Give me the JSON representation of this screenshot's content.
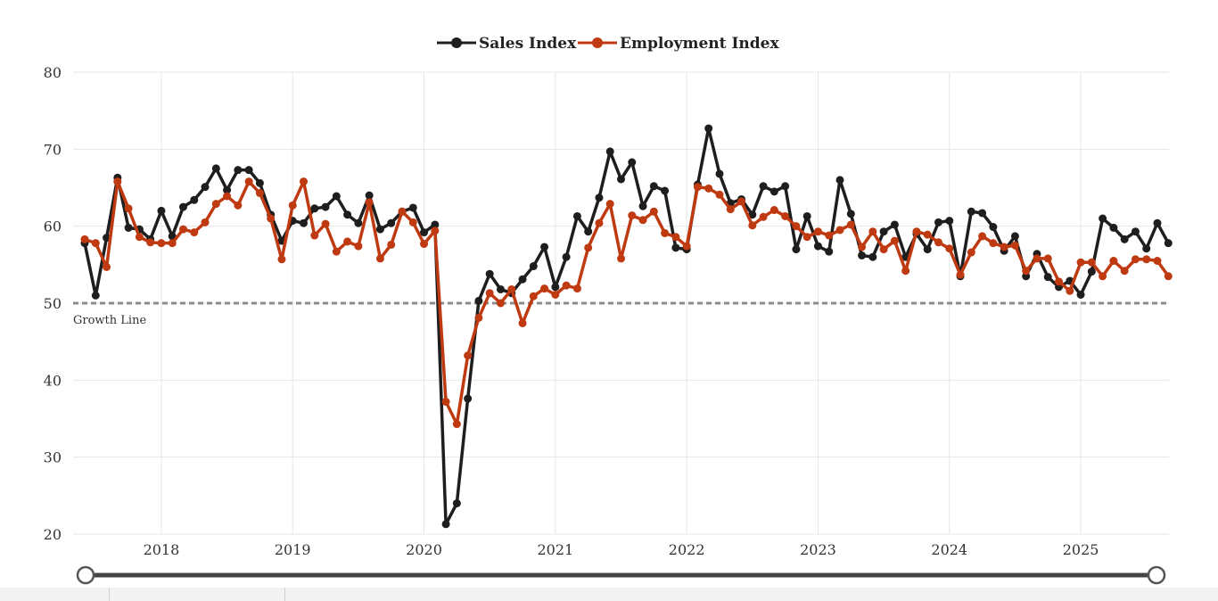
{
  "chart_data": {
    "type": "line",
    "title": "",
    "xlabel": "",
    "ylabel": "",
    "ylim": [
      20,
      80
    ],
    "y_ticks": [
      "20",
      "30",
      "40",
      "50",
      "60",
      "70",
      "80"
    ],
    "x_ticks": [
      "2018",
      "2019",
      "2020",
      "2021",
      "2022",
      "2023",
      "2024",
      "2025"
    ],
    "x_start": "2017-06",
    "x_end": "2025-08",
    "grid": true,
    "legend_position": "top-center",
    "annotations": [
      {
        "label": "Growth Line",
        "y": 50
      }
    ],
    "series": [
      {
        "name": "Sales Index",
        "color": "#1e1e1e",
        "values": [
          57.8,
          51.0,
          58.5,
          66.3,
          59.8,
          59.6,
          58.3,
          62.0,
          58.7,
          62.5,
          63.4,
          65.1,
          67.5,
          64.7,
          67.3,
          67.3,
          65.6,
          61.5,
          58.1,
          60.7,
          60.4,
          62.3,
          62.5,
          63.9,
          61.5,
          60.4,
          64.0,
          59.6,
          60.4,
          61.9,
          62.4,
          59.2,
          60.2,
          21.3,
          24.0,
          37.6,
          50.3,
          53.8,
          51.8,
          51.3,
          53.1,
          54.8,
          57.3,
          52.1,
          56.0,
          61.3,
          59.3,
          63.7,
          69.7,
          66.1,
          68.3,
          62.6,
          65.2,
          64.6,
          57.2,
          57.0,
          65.4,
          72.7,
          66.8,
          63.0,
          63.5,
          61.5,
          65.2,
          64.5,
          65.2,
          57.0,
          61.3,
          57.4,
          56.7,
          66.0,
          61.6,
          56.2,
          56.0,
          59.3,
          60.2,
          56.0,
          59.0,
          57.0,
          60.5,
          60.7,
          53.5,
          61.9,
          61.7,
          59.9,
          56.8,
          58.7,
          53.5,
          56.4,
          53.4,
          52.1,
          52.9,
          51.1,
          54.1,
          61.0,
          59.8,
          58.3,
          59.3,
          57.1,
          60.4,
          57.8
        ]
      },
      {
        "name": "Employment Index",
        "color": "#bf3a11",
        "values": [
          58.3,
          57.8,
          54.7,
          65.8,
          62.3,
          58.6,
          57.9,
          57.8,
          57.8,
          59.6,
          59.2,
          60.5,
          62.9,
          63.9,
          62.7,
          65.8,
          64.3,
          61.0,
          55.7,
          62.7,
          65.8,
          58.8,
          60.3,
          56.7,
          58.0,
          57.4,
          63.1,
          55.8,
          57.6,
          61.9,
          60.5,
          57.7,
          59.4,
          37.2,
          34.3,
          43.2,
          48.1,
          51.3,
          50.0,
          51.8,
          47.4,
          50.9,
          51.9,
          51.1,
          52.3,
          51.9,
          57.2,
          60.4,
          62.9,
          55.8,
          61.4,
          60.8,
          61.9,
          59.1,
          58.6,
          57.4,
          65.1,
          64.9,
          64.1,
          62.2,
          63.2,
          60.1,
          61.2,
          62.1,
          61.3,
          60.0,
          58.6,
          59.3,
          58.8,
          59.5,
          60.2,
          57.3,
          59.3,
          57.0,
          58.1,
          54.2,
          59.3,
          58.9,
          57.9,
          57.1,
          53.7,
          56.6,
          58.7,
          57.8,
          57.3,
          57.5,
          54.2,
          55.8,
          55.8,
          52.8,
          51.6,
          55.3,
          55.3,
          53.5,
          55.5,
          54.2,
          55.7,
          55.7,
          55.5,
          53.5
        ]
      }
    ]
  }
}
